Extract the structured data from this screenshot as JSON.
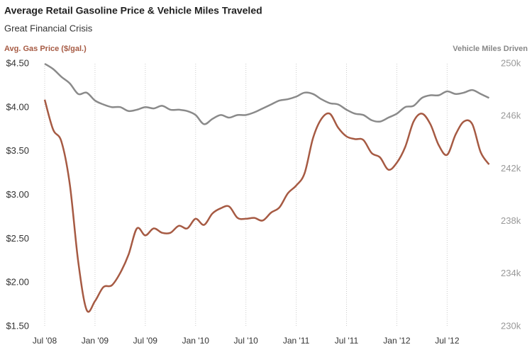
{
  "chart_data": {
    "type": "line",
    "title": "Average Retail Gasoline Price & Vehicle Miles Traveled",
    "subtitle": "Great Financial Crisis",
    "ylabel": "Avg. Gas Price ($/gal.)",
    "y2label": "Vehicle Miles Driven",
    "categories": [
      "Jul '08",
      null,
      null,
      null,
      null,
      null,
      "Jan '09",
      null,
      null,
      null,
      null,
      null,
      "Jul '09",
      null,
      null,
      null,
      null,
      null,
      "Jan '10",
      null,
      null,
      null,
      null,
      null,
      "Jul '10",
      null,
      null,
      null,
      null,
      null,
      "Jan '11",
      null,
      null,
      null,
      null,
      null,
      "Jul '11",
      null,
      null,
      null,
      null,
      null,
      "Jan '12",
      null,
      null,
      null,
      null,
      null,
      "Jul '12",
      null,
      null,
      null,
      null,
      null
    ],
    "series": [
      {
        "name": "Avg. Gas Price ($/gal.)",
        "color": "#a65a43",
        "axis": "y",
        "values": [
          4.09,
          3.75,
          3.61,
          3.12,
          2.24,
          1.69,
          1.79,
          1.95,
          1.97,
          2.11,
          2.32,
          2.62,
          2.54,
          2.62,
          2.57,
          2.57,
          2.65,
          2.62,
          2.73,
          2.66,
          2.79,
          2.85,
          2.87,
          2.74,
          2.73,
          2.74,
          2.71,
          2.8,
          2.86,
          3.02,
          3.11,
          3.25,
          3.65,
          3.87,
          3.93,
          3.77,
          3.67,
          3.64,
          3.63,
          3.48,
          3.43,
          3.29,
          3.37,
          3.55,
          3.84,
          3.93,
          3.81,
          3.57,
          3.46,
          3.69,
          3.84,
          3.81,
          3.49,
          3.35
        ]
      },
      {
        "name": "Vehicle Miles Driven",
        "color": "#8a8a8a",
        "axis": "y2",
        "values": [
          250000,
          249600,
          249000,
          248500,
          247700,
          247800,
          247200,
          246900,
          246700,
          246700,
          246400,
          246500,
          246700,
          246600,
          246800,
          246500,
          246500,
          246400,
          246100,
          245400,
          245800,
          246100,
          245900,
          246100,
          246100,
          246300,
          246600,
          246900,
          247200,
          247300,
          247500,
          247800,
          247700,
          247300,
          247000,
          246900,
          246500,
          246200,
          246100,
          245700,
          245600,
          245900,
          246200,
          246700,
          246800,
          247400,
          247600,
          247600,
          247900,
          247700,
          247800,
          248000,
          247700,
          247400
        ]
      }
    ],
    "ylim": [
      1.5,
      4.5
    ],
    "yticks": [
      {
        "value": 1.5,
        "label": "$1.50"
      },
      {
        "value": 2,
        "label": "$2.00"
      },
      {
        "value": 2.5,
        "label": "$2.50"
      },
      {
        "value": 3,
        "label": "$3.00"
      },
      {
        "value": 3.5,
        "label": "$3.50"
      },
      {
        "value": 4,
        "label": "$4.00"
      },
      {
        "value": 4.5,
        "label": "$4.50"
      }
    ],
    "y2lim": [
      230000,
      250000
    ],
    "y2ticks": [
      {
        "value": 230000,
        "label": "230k"
      },
      {
        "value": 234000,
        "label": "234k"
      },
      {
        "value": 238000,
        "label": "238k"
      },
      {
        "value": 242000,
        "label": "242k"
      },
      {
        "value": 246000,
        "label": "246k"
      },
      {
        "value": 250000,
        "label": "250k"
      }
    ],
    "grid": "x"
  }
}
